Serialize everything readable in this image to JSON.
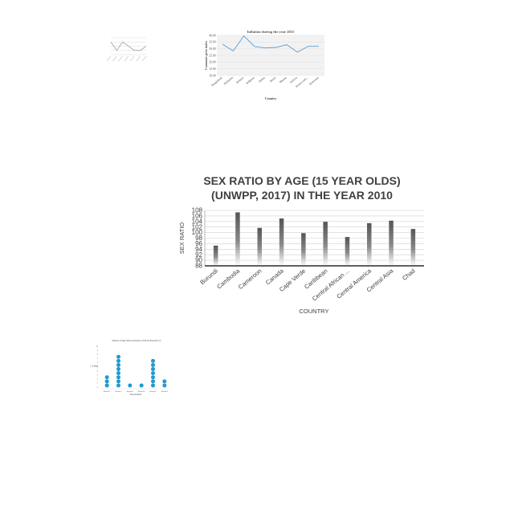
{
  "chart_data": [
    {
      "type": "line",
      "title": "",
      "xlabel": "",
      "ylabel": "",
      "x": [
        1,
        2,
        3,
        4,
        5,
        6,
        7
      ],
      "series": [
        {
          "values": [
            3,
            1,
            3,
            2,
            1,
            1,
            2
          ]
        }
      ],
      "grid": true,
      "colors": {
        "line": "#a9a9a9"
      }
    },
    {
      "type": "line",
      "title": "Inflation during the year 2015",
      "xlabel": "Country",
      "ylabel": "Consumer price index",
      "categories": [
        "Bangladesh",
        "Barbados",
        "Belarus",
        "Belgium",
        "Belize",
        "Benin",
        "Bhutan",
        "Bolivia",
        "Bosnia and...",
        "Botswana"
      ],
      "series": [
        {
          "values": [
            33.4,
            28.4,
            39.6,
            31.6,
            30.6,
            31.0,
            33.0,
            27.4,
            31.8,
            31.8
          ]
        }
      ],
      "yticks": [
        "10.00",
        "15.00",
        "20.00",
        "25.00",
        "30.00",
        "35.00",
        "40.00"
      ],
      "ylim": [
        10,
        40
      ],
      "grid": true,
      "colors": {
        "line": "#5b9bd5",
        "plot_bg": "#f2f2f2"
      }
    },
    {
      "type": "bar",
      "title": "SEX RATIO BY AGE (15 YEAR OLDS) (UNWPP, 2017) IN THE YEAR 2010",
      "title_lines": [
        "SEX RATIO BY AGE (15 YEAR OLDS)",
        "(UNWPP, 2017) IN THE YEAR 2010"
      ],
      "xlabel": "COUNTRY",
      "ylabel": "SEX RATIO",
      "categories": [
        "Burundi",
        "Cambodia",
        "Cameroon",
        "Canada",
        "Cape Verde",
        "Caribbean",
        "Central African ...",
        "Central America",
        "Central Asia",
        "Chad"
      ],
      "values": [
        95.3,
        107.3,
        101.7,
        105.1,
        99.8,
        103.9,
        98.4,
        103.4,
        104.3,
        101.3
      ],
      "yticks": [
        88,
        90,
        92,
        94,
        96,
        98,
        100,
        102,
        104,
        106,
        108
      ],
      "ylim": [
        88,
        108
      ],
      "grid": true,
      "colors": {
        "bar_top": "#555555",
        "bar_bottom": "#ffffff",
        "axis": "#000000"
      }
    },
    {
      "type": "scatter",
      "title": "Number of days frozen during the month of November (?)",
      "xlabel": "Sound Month",
      "ylabel": "No. of days",
      "categories": [
        "Round 1",
        "Round 2",
        "Round 3",
        "Round 4",
        "Round 5",
        "Round 6"
      ],
      "values": [
        3,
        8,
        1,
        1,
        7,
        2
      ],
      "ylim": [
        0,
        10
      ],
      "grid": false,
      "colors": {
        "dot": "#1f9bd1"
      }
    }
  ]
}
